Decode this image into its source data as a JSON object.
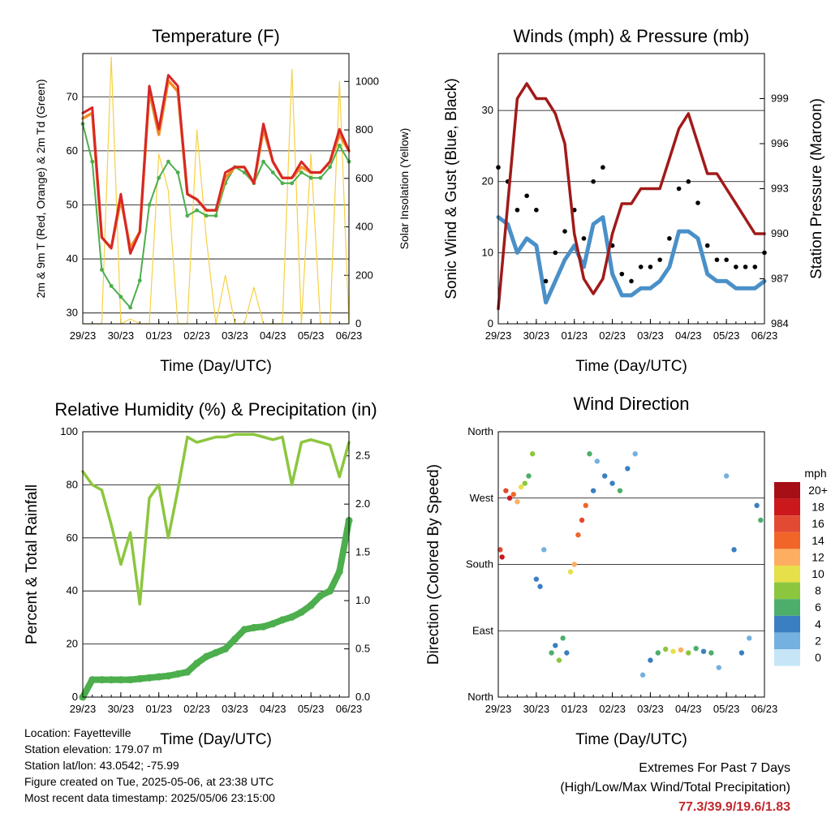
{
  "x_ticks": [
    "29/23",
    "30/23",
    "01/23",
    "02/23",
    "03/23",
    "04/23",
    "05/23",
    "06/23"
  ],
  "xlabel": "Time (Day/UTC)",
  "station_info": {
    "location": "Location: Fayetteville",
    "elevation": "Station elevation: 179.07 m",
    "latlon": "Station lat/lon: 43.0542; -75.99",
    "created": "Figure created on Tue, 2025-05-06, at 23:38 UTC",
    "recent": "Most recent data timestamp: 2025/05/06 23:15:00"
  },
  "extremes": {
    "title": "Extremes For Past 7 Days",
    "subtitle": "(High/Low/Max Wind/Total Precipitation)",
    "values": "77.3/39.9/19.6/1.83"
  },
  "colors": {
    "temp2m": "#d62728",
    "temp9m": "#f28c28",
    "dewpoint": "#4cae4c",
    "solar": "#f5d142",
    "wind": "#4a90c8",
    "gust": "#000000",
    "pressure": "#a11a1a",
    "rh": "#8cc63f",
    "rain": "#4cae4c"
  },
  "chart_data": [
    {
      "type": "line",
      "title": "Temperature (F)",
      "ylabel": "2m & 9m T (Red, Orange) & 2m Td (Green)",
      "y2label": "Solar Insolation (Yellow)",
      "ylim": [
        28,
        78
      ],
      "y2lim": [
        0,
        1115
      ],
      "yticks": [
        30,
        40,
        50,
        60,
        70
      ],
      "y2ticks": [
        0,
        200,
        400,
        600,
        800,
        1000
      ],
      "x": [
        0,
        0.25,
        0.5,
        0.75,
        1.0,
        1.25,
        1.5,
        1.75,
        2.0,
        2.25,
        2.5,
        2.75,
        3.0,
        3.25,
        3.5,
        3.75,
        4.0,
        4.25,
        4.5,
        4.75,
        5.0,
        5.25,
        5.5,
        5.75,
        6.0,
        6.25,
        6.5,
        6.75,
        7.0
      ],
      "series": [
        {
          "key": "t2m",
          "values": [
            67,
            68,
            44,
            42,
            52,
            41,
            45,
            72,
            64,
            74,
            72,
            52,
            51,
            49,
            49,
            56,
            57,
            57,
            54,
            65,
            58,
            55,
            55,
            58,
            56,
            56,
            58,
            64,
            60
          ]
        },
        {
          "key": "t9m",
          "values": [
            66,
            67,
            44,
            42,
            51,
            42,
            45,
            71,
            63,
            73,
            71,
            52,
            51,
            49,
            49,
            55,
            57,
            57,
            54,
            64,
            58,
            55,
            55,
            57,
            56,
            56,
            58,
            63,
            60
          ]
        },
        {
          "key": "td2m",
          "values": [
            65,
            58,
            38,
            35,
            33,
            31,
            36,
            50,
            55,
            58,
            56,
            48,
            49,
            48,
            48,
            54,
            57,
            56,
            54,
            58,
            56,
            54,
            54,
            56,
            55,
            55,
            57,
            61,
            58
          ]
        },
        {
          "key": "solar",
          "values": [
            0,
            0,
            0,
            1100,
            0,
            20,
            0,
            0,
            700,
            550,
            0,
            0,
            800,
            350,
            0,
            200,
            0,
            0,
            150,
            0,
            0,
            0,
            1050,
            0,
            700,
            0,
            0,
            1000,
            0
          ]
        }
      ]
    },
    {
      "type": "scatter",
      "title": "Winds (mph) & Pressure (mb)",
      "ylabel": "Sonic Wind & Gust (Blue, Black)",
      "y2label": "Station Pressure (Maroon)",
      "ylim": [
        0,
        38
      ],
      "y2lim": [
        984,
        1002
      ],
      "yticks": [
        0,
        10,
        20,
        30
      ],
      "y2ticks": [
        984,
        987,
        990,
        993,
        996,
        999
      ],
      "x": [
        0,
        0.25,
        0.5,
        0.75,
        1.0,
        1.25,
        1.5,
        1.75,
        2.0,
        2.25,
        2.5,
        2.75,
        3.0,
        3.25,
        3.5,
        3.75,
        4.0,
        4.25,
        4.5,
        4.75,
        5.0,
        5.25,
        5.5,
        5.75,
        6.0,
        6.25,
        6.5,
        6.75,
        7.0
      ],
      "series": [
        {
          "key": "wind",
          "values": [
            15,
            14,
            10,
            12,
            11,
            3,
            6,
            9,
            11,
            8,
            14,
            15,
            7,
            4,
            4,
            5,
            5,
            6,
            8,
            13,
            13,
            12,
            7,
            6,
            6,
            5,
            5,
            5,
            6
          ]
        },
        {
          "key": "gust",
          "values": [
            22,
            20,
            16,
            18,
            16,
            6,
            10,
            13,
            16,
            12,
            20,
            22,
            11,
            7,
            6,
            8,
            8,
            9,
            12,
            19,
            20,
            17,
            11,
            9,
            9,
            8,
            8,
            8,
            10
          ]
        },
        {
          "key": "pressure",
          "values": [
            985,
            992,
            999,
            1000,
            999,
            999,
            998,
            996,
            990,
            987,
            986,
            987,
            990,
            992,
            992,
            993,
            993,
            993,
            995,
            997,
            998,
            996,
            994,
            994,
            993,
            992,
            991,
            990,
            990
          ]
        }
      ]
    },
    {
      "type": "line",
      "title": "Relative Humidity (%) & Precipitation (in)",
      "ylabel": "Percent & Total Rainfall",
      "ylim": [
        0,
        100
      ],
      "y2lim": [
        0,
        2.75
      ],
      "yticks": [
        0,
        20,
        40,
        60,
        80,
        100
      ],
      "y2ticks": [
        0.0,
        0.5,
        1.0,
        1.5,
        2.0,
        2.5
      ],
      "x": [
        0,
        0.25,
        0.5,
        0.75,
        1.0,
        1.25,
        1.5,
        1.75,
        2.0,
        2.25,
        2.5,
        2.75,
        3.0,
        3.25,
        3.5,
        3.75,
        4.0,
        4.25,
        4.5,
        4.75,
        5.0,
        5.25,
        5.5,
        5.75,
        6.0,
        6.25,
        6.5,
        6.75,
        7.0
      ],
      "series": [
        {
          "key": "rh",
          "values": [
            85,
            80,
            78,
            65,
            50,
            62,
            35,
            75,
            80,
            60,
            78,
            98,
            96,
            97,
            98,
            98,
            99,
            99,
            99,
            98,
            97,
            98,
            80,
            96,
            97,
            96,
            95,
            83,
            96
          ]
        },
        {
          "key": "rain",
          "values": [
            0,
            0.18,
            0.18,
            0.18,
            0.18,
            0.18,
            0.19,
            0.2,
            0.21,
            0.22,
            0.24,
            0.26,
            0.35,
            0.42,
            0.46,
            0.5,
            0.6,
            0.7,
            0.72,
            0.73,
            0.76,
            0.8,
            0.83,
            0.88,
            0.95,
            1.05,
            1.1,
            1.3,
            1.83
          ]
        }
      ]
    },
    {
      "type": "scatter",
      "title": "Wind Direction",
      "ylabel": "Direction (Colored By Speed)",
      "ylim": [
        0,
        360
      ],
      "yticks": [
        0,
        90,
        180,
        270,
        360
      ],
      "ytick_labels": [
        "North",
        "East",
        "South",
        "West",
        "North"
      ],
      "legend_title": "mph",
      "legend": [
        "20+",
        "18",
        "16",
        "14",
        "12",
        "10",
        "8",
        "6",
        "4",
        "2",
        "0"
      ],
      "legend_colors": [
        "#a50f15",
        "#cb181d",
        "#e34a33",
        "#f16529",
        "#fdae61",
        "#e6e04a",
        "#8cc63f",
        "#4cae6a",
        "#3a7fc1",
        "#74b1e0",
        "#c6e6f8"
      ],
      "points": [
        {
          "x": 0.05,
          "dir": 200,
          "spd": 16
        },
        {
          "x": 0.1,
          "dir": 190,
          "spd": 18
        },
        {
          "x": 0.2,
          "dir": 280,
          "spd": 16
        },
        {
          "x": 0.3,
          "dir": 270,
          "spd": 18
        },
        {
          "x": 0.4,
          "dir": 275,
          "spd": 14
        },
        {
          "x": 0.5,
          "dir": 265,
          "spd": 12
        },
        {
          "x": 0.6,
          "dir": 285,
          "spd": 10
        },
        {
          "x": 0.7,
          "dir": 290,
          "spd": 8
        },
        {
          "x": 0.8,
          "dir": 300,
          "spd": 6
        },
        {
          "x": 0.9,
          "dir": 330,
          "spd": 8
        },
        {
          "x": 1.0,
          "dir": 160,
          "spd": 4
        },
        {
          "x": 1.1,
          "dir": 150,
          "spd": 4
        },
        {
          "x": 1.2,
          "dir": 200,
          "spd": 2
        },
        {
          "x": 1.4,
          "dir": 60,
          "spd": 6
        },
        {
          "x": 1.5,
          "dir": 70,
          "spd": 4
        },
        {
          "x": 1.6,
          "dir": 50,
          "spd": 8
        },
        {
          "x": 1.7,
          "dir": 80,
          "spd": 6
        },
        {
          "x": 1.8,
          "dir": 60,
          "spd": 4
        },
        {
          "x": 1.9,
          "dir": 170,
          "spd": 10
        },
        {
          "x": 2.0,
          "dir": 180,
          "spd": 12
        },
        {
          "x": 2.1,
          "dir": 220,
          "spd": 14
        },
        {
          "x": 2.2,
          "dir": 240,
          "spd": 16
        },
        {
          "x": 2.3,
          "dir": 260,
          "spd": 14
        },
        {
          "x": 2.4,
          "dir": 330,
          "spd": 6
        },
        {
          "x": 2.5,
          "dir": 280,
          "spd": 4
        },
        {
          "x": 2.6,
          "dir": 320,
          "spd": 2
        },
        {
          "x": 2.8,
          "dir": 300,
          "spd": 4
        },
        {
          "x": 3.0,
          "dir": 290,
          "spd": 4
        },
        {
          "x": 3.2,
          "dir": 280,
          "spd": 6
        },
        {
          "x": 3.4,
          "dir": 310,
          "spd": 4
        },
        {
          "x": 3.6,
          "dir": 330,
          "spd": 2
        },
        {
          "x": 3.8,
          "dir": 30,
          "spd": 2
        },
        {
          "x": 4.0,
          "dir": 50,
          "spd": 4
        },
        {
          "x": 4.2,
          "dir": 60,
          "spd": 6
        },
        {
          "x": 4.4,
          "dir": 65,
          "spd": 8
        },
        {
          "x": 4.6,
          "dir": 62,
          "spd": 10
        },
        {
          "x": 4.8,
          "dir": 64,
          "spd": 12
        },
        {
          "x": 5.0,
          "dir": 60,
          "spd": 8
        },
        {
          "x": 5.2,
          "dir": 66,
          "spd": 6
        },
        {
          "x": 5.4,
          "dir": 62,
          "spd": 4
        },
        {
          "x": 5.6,
          "dir": 60,
          "spd": 6
        },
        {
          "x": 5.8,
          "dir": 40,
          "spd": 2
        },
        {
          "x": 6.0,
          "dir": 300,
          "spd": 2
        },
        {
          "x": 6.2,
          "dir": 200,
          "spd": 4
        },
        {
          "x": 6.4,
          "dir": 60,
          "spd": 4
        },
        {
          "x": 6.6,
          "dir": 80,
          "spd": 2
        },
        {
          "x": 6.8,
          "dir": 260,
          "spd": 4
        },
        {
          "x": 6.9,
          "dir": 240,
          "spd": 6
        }
      ]
    }
  ]
}
